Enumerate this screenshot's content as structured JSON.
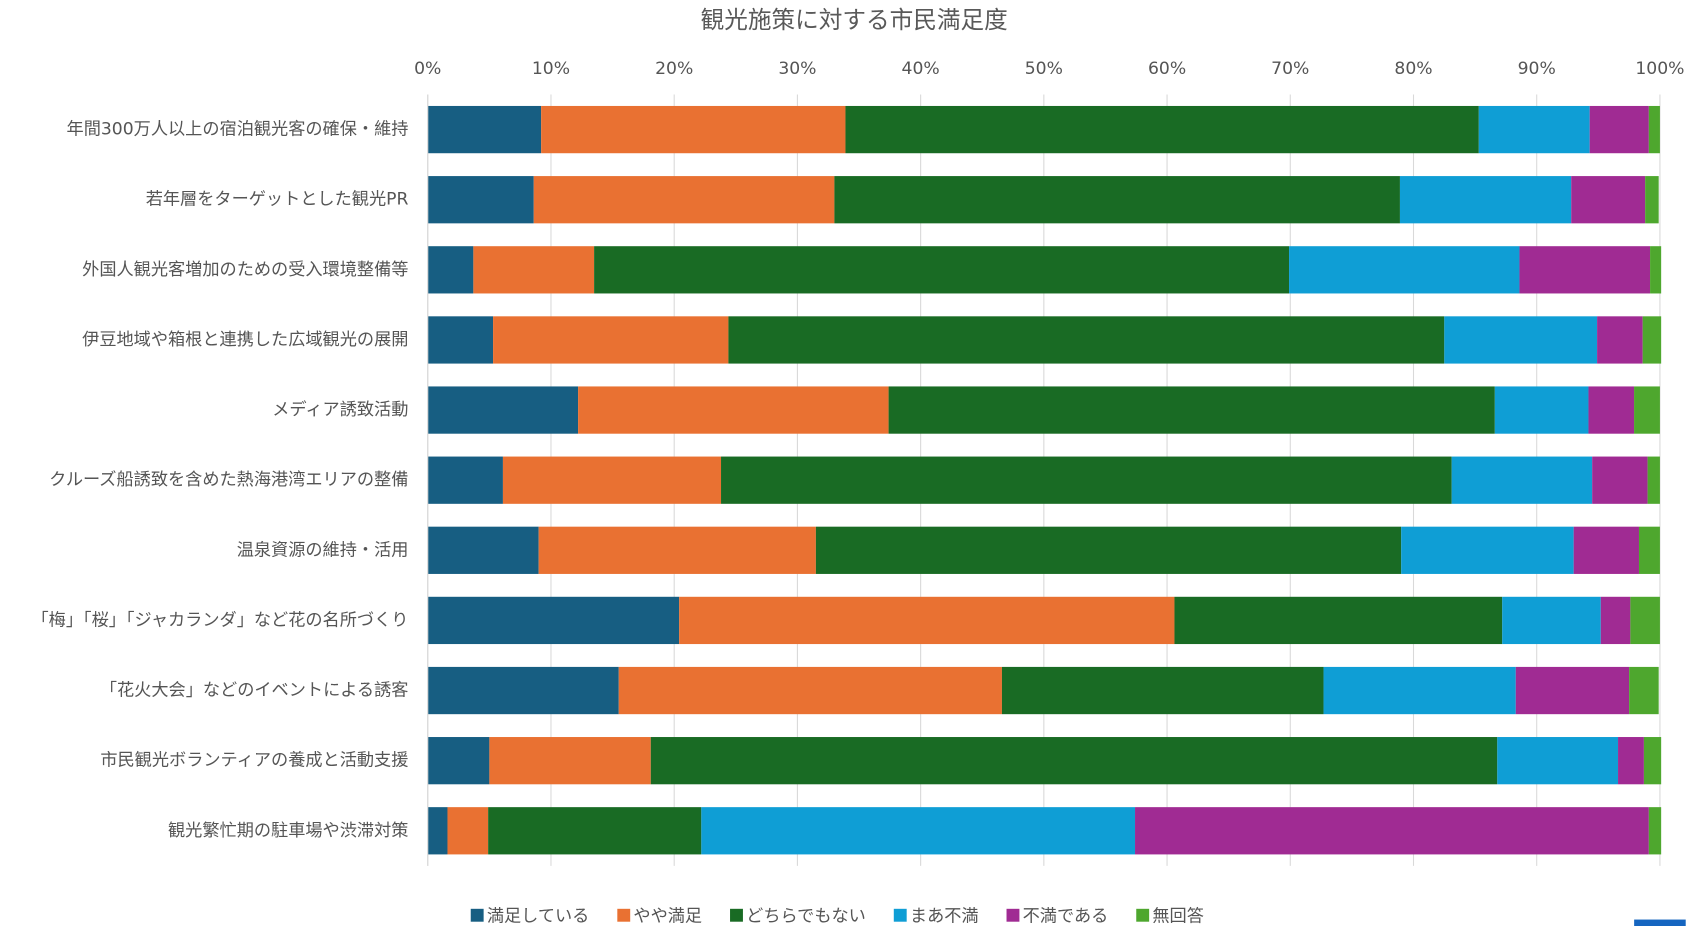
{
  "chart_data": {
    "type": "stacked-barh",
    "title": "観光施策に対する市民満足度",
    "categories": [
      "年間300万人以上の宿泊観光客の確保・維持",
      "若年層をターゲットとした観光PR",
      "外国人観光客増加のための受入環境整備等",
      "伊豆地域や箱根と連携した広域観光の展開",
      "メディア誘致活動",
      "クルーズ船誘致を含めた熱海港湾エリアの整備",
      "温泉資源の維持・活用",
      "「梅」「桜」「ジャカランダ」など花の名所づくり",
      "「花火大会」などのイベントによる誘客",
      "市民観光ボランティアの養成と活動支援",
      "観光繁忙期の駐車場や渋滞対策"
    ],
    "series": [
      {
        "name": "満足している",
        "color": "#175e82",
        "values": [
          9.2,
          8.6,
          3.7,
          5.3,
          12.2,
          6.1,
          9.0,
          20.4,
          15.5,
          5.0,
          1.6
        ]
      },
      {
        "name": "やや満足",
        "color": "#e97132",
        "values": [
          24.7,
          24.4,
          9.8,
          19.1,
          25.2,
          17.7,
          22.5,
          40.2,
          31.1,
          13.1,
          3.3
        ]
      },
      {
        "name": "どちらでもない",
        "color": "#196b24",
        "values": [
          51.4,
          45.9,
          56.4,
          58.1,
          49.2,
          59.3,
          47.5,
          26.6,
          26.1,
          68.7,
          17.3
        ]
      },
      {
        "name": "まあ不満",
        "color": "#0f9ed5",
        "values": [
          9.0,
          13.9,
          18.7,
          12.4,
          7.6,
          11.4,
          14.0,
          8.0,
          15.6,
          9.8,
          35.2
        ]
      },
      {
        "name": "不満である",
        "color": "#a02b93",
        "values": [
          4.8,
          6.0,
          10.6,
          3.7,
          3.7,
          4.5,
          5.3,
          2.4,
          9.2,
          2.1,
          41.7
        ]
      },
      {
        "name": "無回答",
        "color": "#4ea72e",
        "values": [
          0.9,
          1.1,
          0.9,
          1.5,
          2.1,
          1.0,
          1.7,
          2.4,
          2.4,
          1.4,
          1.0
        ]
      }
    ],
    "xlim": [
      0,
      100
    ],
    "xticks": [
      {
        "value": 0,
        "label": "0%"
      },
      {
        "value": 10,
        "label": "10%"
      },
      {
        "value": 20,
        "label": "20%"
      },
      {
        "value": 30,
        "label": "30%"
      },
      {
        "value": 40,
        "label": "40%"
      },
      {
        "value": 50,
        "label": "50%"
      },
      {
        "value": 60,
        "label": "60%"
      },
      {
        "value": 70,
        "label": "70%"
      },
      {
        "value": 80,
        "label": "80%"
      },
      {
        "value": 90,
        "label": "90%"
      },
      {
        "value": 100,
        "label": "100%"
      }
    ],
    "grid": true,
    "legend": "bottom"
  }
}
